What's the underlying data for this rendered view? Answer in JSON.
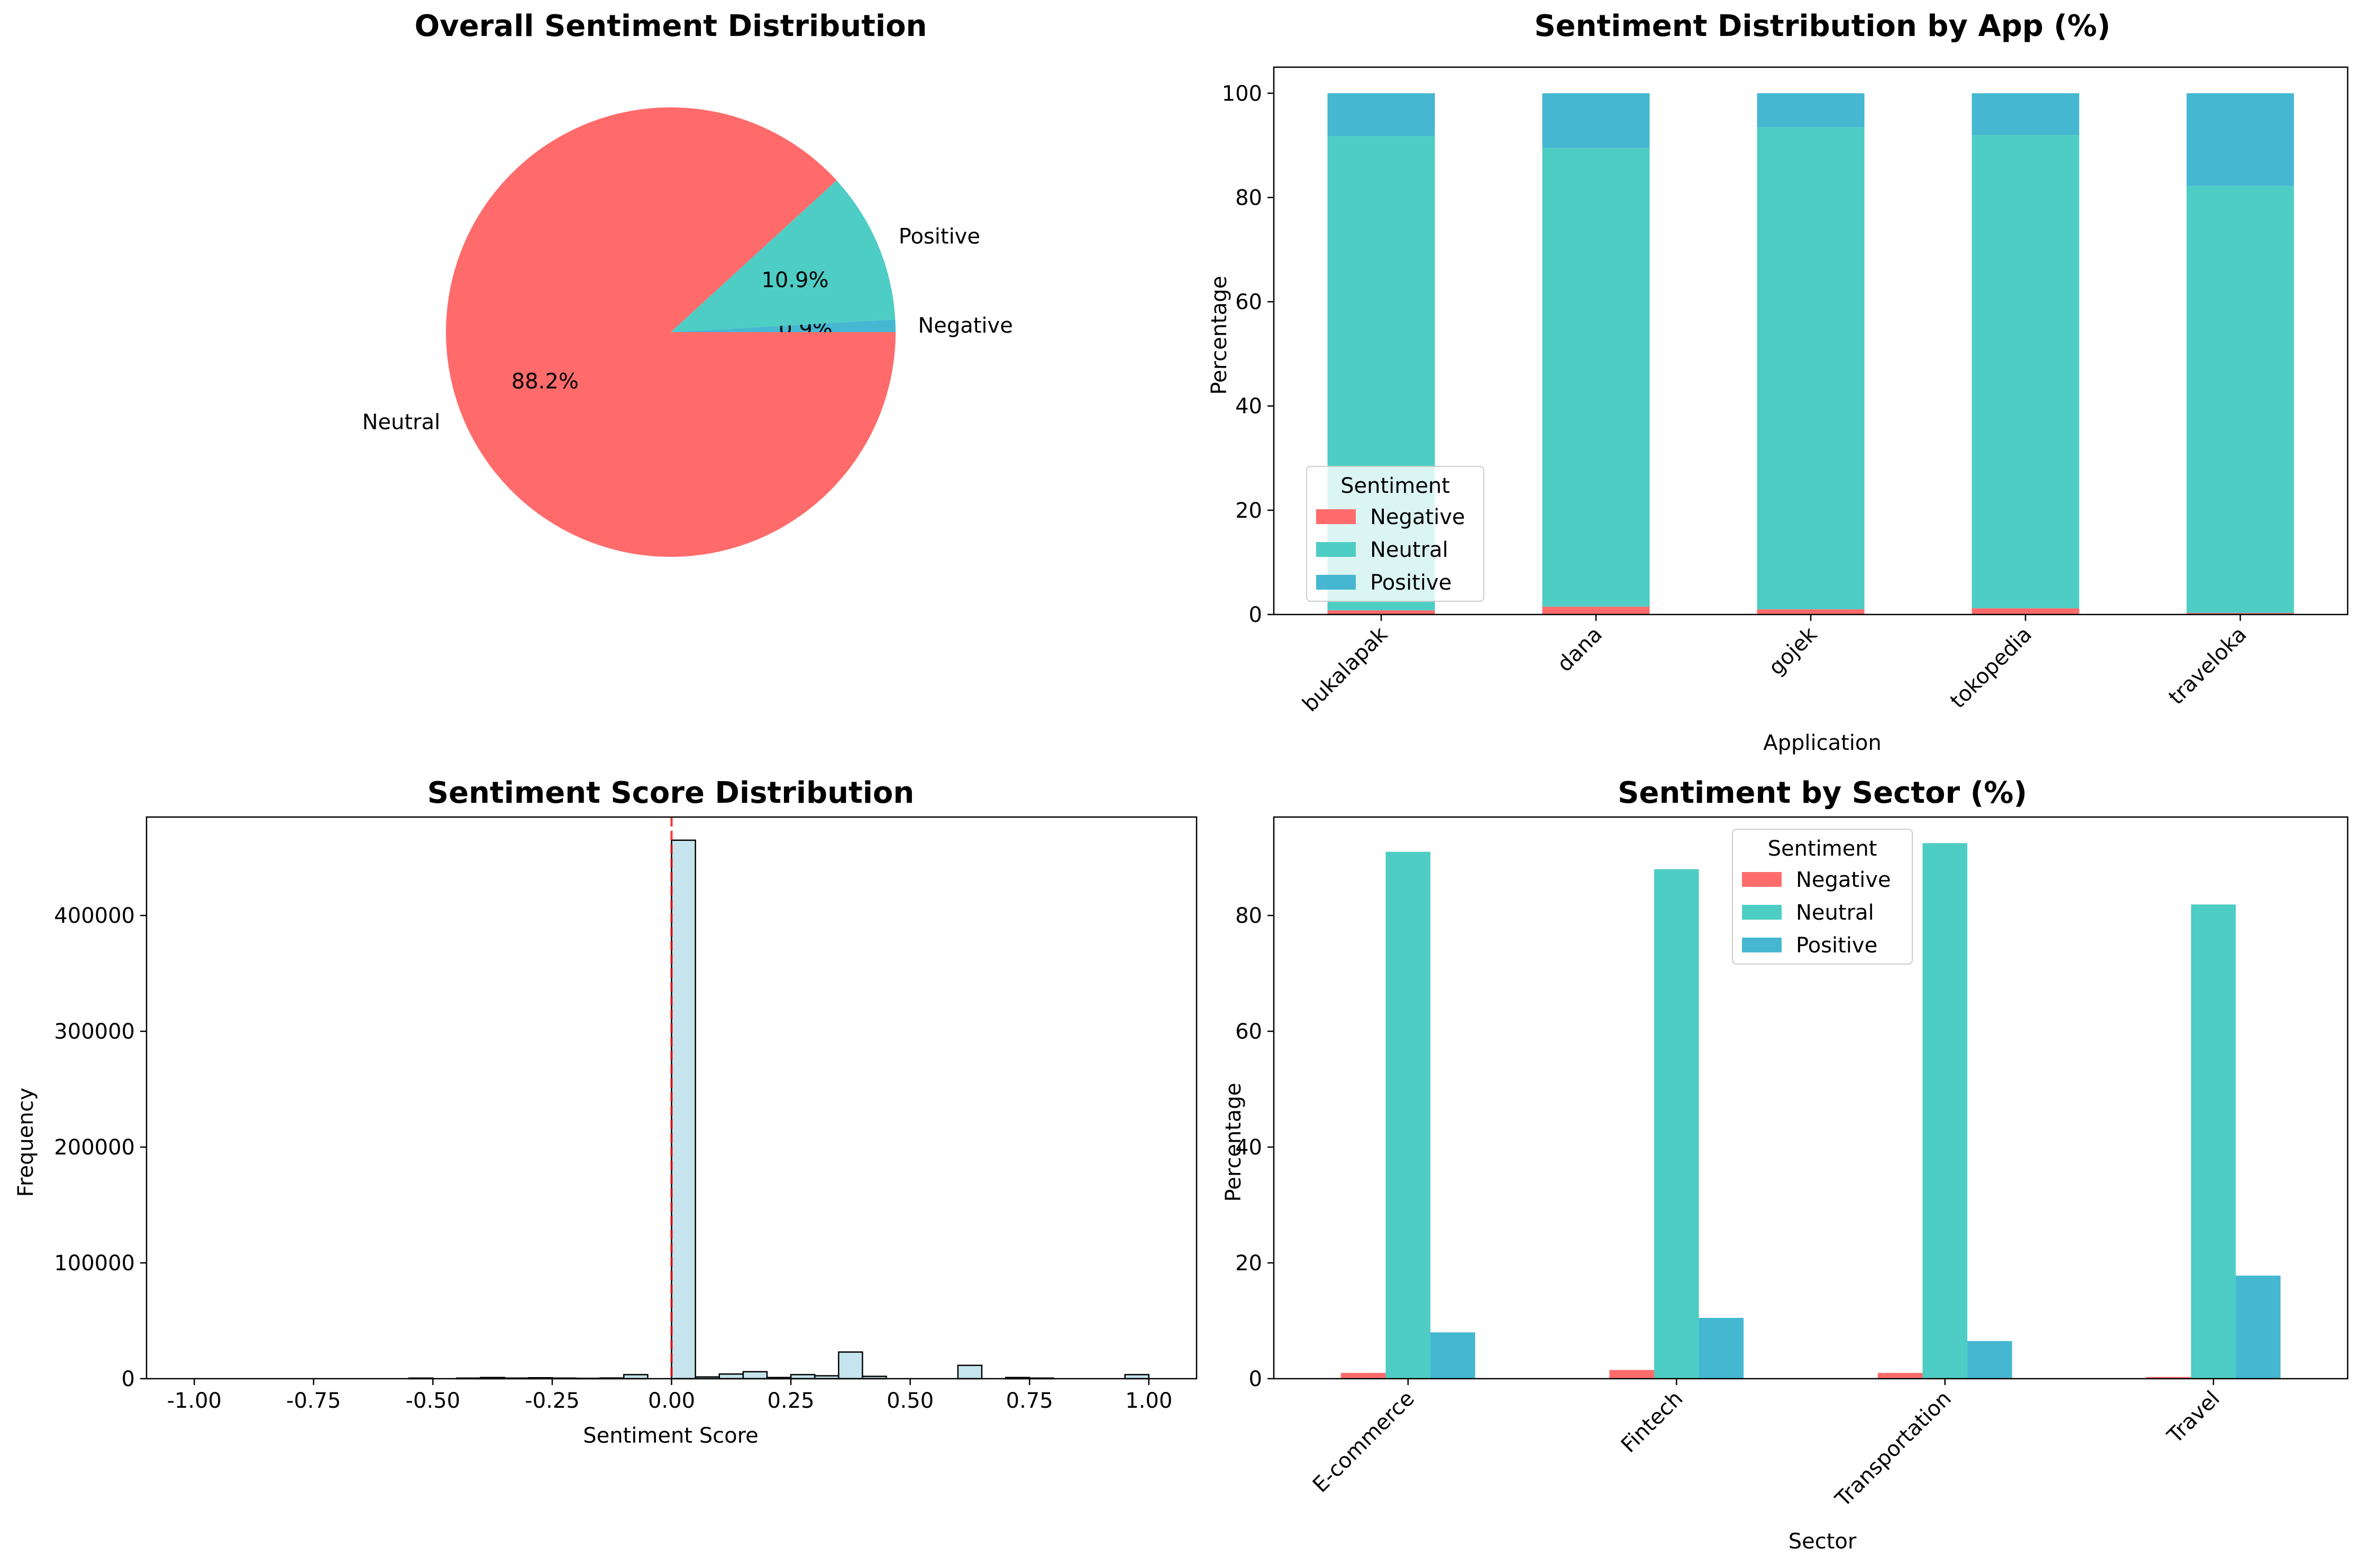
{
  "colors": {
    "negative": "#ff6b6b",
    "neutral": "#4ecdc4",
    "positive": "#45b7d1",
    "hist_fill": "#add8e6",
    "hist_edge": "#000000",
    "zero_line": "#ff0000"
  },
  "chart_data": [
    {
      "type": "pie",
      "title": "Overall Sentiment Distribution",
      "slices": [
        {
          "label": "Negative",
          "value": 0.9,
          "pct_label": "0.9%",
          "color": "#45b7d1"
        },
        {
          "label": "Positive",
          "value": 10.9,
          "pct_label": "10.9%",
          "color": "#4ecdc4"
        },
        {
          "label": "Neutral",
          "value": 88.2,
          "pct_label": "88.2%",
          "color": "#ff6b6b"
        }
      ]
    },
    {
      "type": "bar",
      "stacked": true,
      "title": "Sentiment Distribution by App (%)",
      "xlabel": "Application",
      "ylabel": "Percentage",
      "ylim": [
        0,
        105
      ],
      "yticks": [
        0,
        20,
        40,
        60,
        80,
        100
      ],
      "categories": [
        "bukalapak",
        "dana",
        "gojek",
        "tokopedia",
        "traveloka"
      ],
      "series": [
        {
          "name": "Negative",
          "color": "#ff6b6b",
          "values": [
            0.8,
            1.5,
            1.0,
            1.2,
            0.3
          ]
        },
        {
          "name": "Neutral",
          "color": "#4ecdc4",
          "values": [
            91.0,
            88.0,
            92.5,
            90.8,
            81.9
          ]
        },
        {
          "name": "Positive",
          "color": "#45b7d1",
          "values": [
            8.2,
            10.5,
            6.5,
            8.0,
            17.8
          ]
        }
      ],
      "legend": {
        "title": "Sentiment",
        "placement": "lower-left"
      }
    },
    {
      "type": "bar",
      "histogram": true,
      "title": "Sentiment Score Distribution",
      "xlabel": "Sentiment Score",
      "ylabel": "Frequency",
      "xlim": [
        -1.1,
        1.1
      ],
      "ylim": [
        0,
        485000
      ],
      "xticks": [
        "-1.00",
        "-0.75",
        "-0.50",
        "-0.25",
        "0.00",
        "0.25",
        "0.50",
        "0.75",
        "1.00"
      ],
      "yticks": [
        0,
        100000,
        200000,
        300000,
        400000
      ],
      "bin_start": -1.0,
      "bin_width": 0.05,
      "counts": [
        0,
        0,
        0,
        0,
        0,
        0,
        0,
        0,
        0,
        500,
        0,
        500,
        1000,
        500,
        800,
        500,
        300,
        600,
        3500,
        0,
        465000,
        1500,
        4000,
        6000,
        1000,
        3500,
        2500,
        23000,
        2000,
        0,
        0,
        0,
        11500,
        0,
        1000,
        500,
        0,
        0,
        0,
        3500
      ],
      "vline_x": 0.0
    },
    {
      "type": "bar",
      "grouped": true,
      "title": "Sentiment by Sector (%)",
      "xlabel": "Sector",
      "ylabel": "Percentage",
      "ylim": [
        0,
        97
      ],
      "yticks": [
        0,
        20,
        40,
        60,
        80
      ],
      "categories": [
        "E-commerce",
        "Fintech",
        "Transportation",
        "Travel"
      ],
      "series": [
        {
          "name": "Negative",
          "color": "#ff6b6b",
          "values": [
            1.0,
            1.5,
            1.0,
            0.3
          ]
        },
        {
          "name": "Neutral",
          "color": "#4ecdc4",
          "values": [
            91.0,
            88.0,
            92.5,
            81.9
          ]
        },
        {
          "name": "Positive",
          "color": "#45b7d1",
          "values": [
            8.0,
            10.5,
            6.5,
            17.8
          ]
        }
      ],
      "legend": {
        "title": "Sentiment",
        "placement": "upper-center"
      }
    }
  ]
}
